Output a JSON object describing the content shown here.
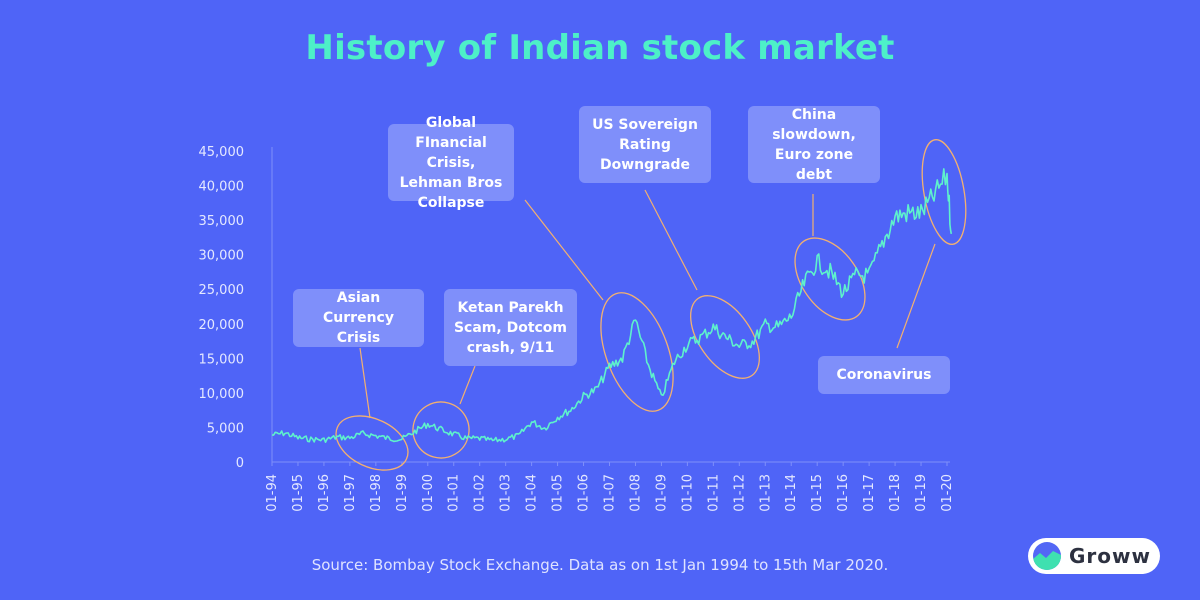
{
  "title": "History of Indian stock market",
  "source": "Source: Bombay Stock Exchange. Data as on 1st Jan 1994 to 15th Mar 2020.",
  "logo": {
    "text": "Groww",
    "icon": "groww-logo-icon"
  },
  "colors": {
    "background": "#4f64f7",
    "title": "#4df0c8",
    "line": "#5ef2cc",
    "annotation_box": "#7f8ffa",
    "ellipse": "#f2b071"
  },
  "chart_data": {
    "type": "line",
    "title": "History of Indian stock market",
    "x_ticks": [
      "01-94",
      "01-95",
      "01-96",
      "01-97",
      "01-98",
      "01-99",
      "01-00",
      "01-01",
      "01-02",
      "01-03",
      "01-04",
      "01-05",
      "01-06",
      "01-07",
      "01-08",
      "01-09",
      "01-10",
      "01-11",
      "01-12",
      "01-13",
      "01-14",
      "01-15",
      "01-16",
      "01-17",
      "01-18",
      "01-19",
      "01-20"
    ],
    "y_ticks": [
      "0",
      "5,000",
      "10,000",
      "15,000",
      "20,000",
      "25,000",
      "30,000",
      "35,000",
      "40,000",
      "45,000"
    ],
    "ylim": [
      0,
      45000
    ],
    "xlim": [
      "1994-01",
      "2020-03"
    ],
    "grid": false,
    "series": [
      {
        "x": [
          "1994-01",
          "1994-07",
          "1995-01",
          "1995-07",
          "1996-01",
          "1996-07",
          "1997-01",
          "1997-07",
          "1998-01",
          "1998-07",
          "1999-01",
          "1999-07",
          "2000-01",
          "2000-07",
          "2001-01",
          "2001-07",
          "2002-01",
          "2002-07",
          "2003-01",
          "2003-07",
          "2004-01",
          "2004-07",
          "2005-01",
          "2005-07",
          "2006-01",
          "2006-07",
          "2007-01",
          "2007-07",
          "2008-01",
          "2008-07",
          "2009-01",
          "2009-07",
          "2010-01",
          "2010-07",
          "2011-01",
          "2011-07",
          "2012-01",
          "2012-07",
          "2013-01",
          "2013-07",
          "2014-01",
          "2014-07",
          "2015-01",
          "2015-07",
          "2016-01",
          "2016-07",
          "2017-01",
          "2017-07",
          "2018-01",
          "2018-07",
          "2019-01",
          "2019-07",
          "2020-01",
          "2020-03"
        ],
        "values": [
          3900,
          4200,
          3500,
          3300,
          3200,
          3600,
          3500,
          4100,
          3800,
          3400,
          3300,
          4400,
          5500,
          4700,
          4000,
          3400,
          3400,
          3100,
          3300,
          3800,
          5800,
          4900,
          6500,
          7500,
          9500,
          10500,
          13800,
          15000,
          20500,
          14000,
          9300,
          14500,
          17000,
          18000,
          19500,
          18000,
          16800,
          17400,
          19800,
          19500,
          21000,
          25800,
          29000,
          27500,
          24500,
          27000,
          27000,
          31500,
          35500,
          36000,
          36000,
          38500,
          41500,
          33000
        ]
      }
    ],
    "annotations": [
      {
        "text": "Asian Currency Crisis"
      },
      {
        "text": "Ketan Parekh Scam, Dotcom crash, 9/11"
      },
      {
        "text": "Global FInancial Crisis, Lehman Bros Collapse"
      },
      {
        "text": "US Sovereign Rating Downgrade"
      },
      {
        "text": "China slowdown, Euro zone debt"
      },
      {
        "text": "Coronavirus"
      }
    ]
  }
}
